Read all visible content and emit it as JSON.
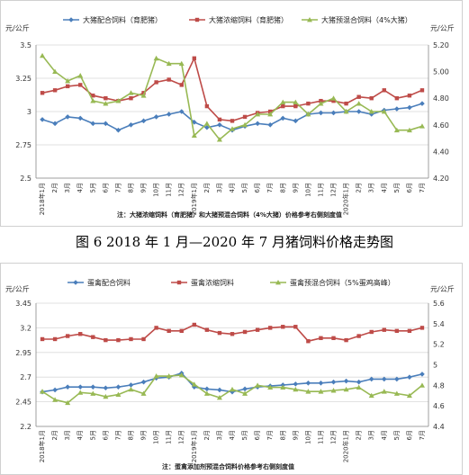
{
  "charts": [
    {
      "legend": [
        {
          "name": "大猪配合饲料（育肥猪）",
          "color": "#4a7ebb"
        },
        {
          "name": "大猪浓缩饲料（育肥猪）",
          "color": "#be4b48"
        },
        {
          "name": "大猪预混合饲料（4%大猪）",
          "color": "#98b954"
        }
      ],
      "y_left_label": "元/公斤",
      "y_right_label": "元/公斤",
      "note": "注：大猪浓缩饲料（育肥猪）和大猪预混合饲料（4%大猪）价格参考右侧刻度值"
    },
    {
      "legend": [
        {
          "name": "蛋禽配合饲料",
          "color": "#4a7ebb"
        },
        {
          "name": "蛋禽浓缩饲料",
          "color": "#be4b48"
        },
        {
          "name": "蛋禽预混合饲料（5%蛋鸡高峰）",
          "color": "#98b954"
        }
      ],
      "y_left_label": "元/公斤",
      "y_right_label": "元/公斤",
      "note": "注：蛋禽添加剂预混合饲料价格参考右侧刻度值"
    }
  ],
  "caption": "图 6   2018 年 1 月—2020 年 7 月猪饲料价格走势图",
  "chart_data": [
    {
      "type": "line",
      "categories": [
        "2018年1月",
        "2月",
        "3月",
        "4月",
        "5月",
        "6月",
        "7月",
        "8月",
        "9月",
        "10月",
        "11月",
        "12月",
        "2019年1月",
        "2月",
        "3月",
        "4月",
        "5月",
        "6月",
        "7月",
        "8月",
        "9月",
        "10月",
        "11月",
        "12月",
        "2020年1月",
        "2月",
        "3月",
        "4月",
        "5月",
        "6月",
        "7月"
      ],
      "y_left": {
        "min": 2.5,
        "max": 3.5,
        "ticks": [
          "2.5",
          "2.75",
          "3",
          "3.25",
          "3.5"
        ]
      },
      "y_right": {
        "min": 4.2,
        "max": 5.2,
        "ticks": [
          "4.20",
          "4.40",
          "4.60",
          "4.80",
          "5.00",
          "5.20"
        ]
      },
      "series": [
        {
          "name": "大猪配合饲料（育肥猪）",
          "axis": "left",
          "color": "#4a7ebb",
          "marker": "diamond",
          "values": [
            2.94,
            2.91,
            2.96,
            2.95,
            2.91,
            2.91,
            2.86,
            2.9,
            2.93,
            2.96,
            2.98,
            3.0,
            2.92,
            2.88,
            2.9,
            2.86,
            2.89,
            2.91,
            2.9,
            2.95,
            2.93,
            2.98,
            2.99,
            2.99,
            3.0,
            3.0,
            2.98,
            3.01,
            3.02,
            3.03,
            3.06
          ]
        },
        {
          "name": "大猪浓缩饲料（育肥猪）",
          "axis": "right",
          "color": "#be4b48",
          "marker": "square",
          "values": [
            4.84,
            4.86,
            4.89,
            4.9,
            4.82,
            4.8,
            4.78,
            4.8,
            4.84,
            4.92,
            4.94,
            4.9,
            5.1,
            4.74,
            4.64,
            4.63,
            4.66,
            4.69,
            4.7,
            4.74,
            4.74,
            4.76,
            4.78,
            4.78,
            4.76,
            4.81,
            4.8,
            4.86,
            4.8,
            4.82,
            4.86
          ]
        },
        {
          "name": "大猪预混合饲料（4%大猪）",
          "axis": "right",
          "color": "#98b954",
          "marker": "triangle",
          "values": [
            5.12,
            5.0,
            4.93,
            4.97,
            4.78,
            4.76,
            4.78,
            4.84,
            4.82,
            5.1,
            5.06,
            5.06,
            4.52,
            4.61,
            4.49,
            4.57,
            4.6,
            4.68,
            4.68,
            4.77,
            4.77,
            4.68,
            4.76,
            4.8,
            4.7,
            4.76,
            4.7,
            4.7,
            4.56,
            4.56,
            4.59
          ]
        }
      ]
    },
    {
      "type": "line",
      "categories": [
        "2018年1月",
        "2月",
        "3月",
        "4月",
        "5月",
        "6月",
        "7月",
        "8月",
        "9月",
        "10月",
        "11月",
        "12月",
        "2019年1月",
        "2月",
        "3月",
        "4月",
        "5月",
        "6月",
        "7月",
        "8月",
        "9月",
        "10月",
        "11月",
        "12月",
        "2020年1月",
        "2月",
        "3月",
        "4月",
        "5月",
        "6月",
        "7月"
      ],
      "y_left": {
        "min": 2.2,
        "max": 3.45,
        "ticks": [
          "2.2",
          "2.45",
          "2.7",
          "2.95",
          "3.2",
          "3.45"
        ]
      },
      "y_right": {
        "min": 4.4,
        "max": 5.6,
        "ticks": [
          "4.4",
          "4.6",
          "4.8",
          "5",
          "5.2",
          "5.4",
          "5.6"
        ]
      },
      "series": [
        {
          "name": "蛋禽配合饲料",
          "axis": "left",
          "color": "#4a7ebb",
          "marker": "diamond",
          "values": [
            2.55,
            2.57,
            2.6,
            2.6,
            2.6,
            2.59,
            2.6,
            2.62,
            2.65,
            2.69,
            2.7,
            2.74,
            2.6,
            2.58,
            2.57,
            2.55,
            2.58,
            2.6,
            2.61,
            2.62,
            2.63,
            2.64,
            2.64,
            2.65,
            2.66,
            2.65,
            2.68,
            2.68,
            2.68,
            2.7,
            2.73
          ]
        },
        {
          "name": "蛋禽浓缩饲料",
          "axis": "right",
          "color": "#be4b48",
          "marker": "square",
          "values": [
            5.25,
            5.25,
            5.28,
            5.3,
            5.27,
            5.24,
            5.24,
            5.25,
            5.25,
            5.36,
            5.33,
            5.33,
            5.39,
            5.34,
            5.31,
            5.3,
            5.32,
            5.34,
            5.36,
            5.37,
            5.37,
            5.23,
            5.26,
            5.26,
            5.24,
            5.28,
            5.32,
            5.34,
            5.33,
            5.33,
            5.36
          ]
        },
        {
          "name": "蛋禽预混合饲料（5%蛋鸡高峰）",
          "axis": "right",
          "color": "#98b954",
          "marker": "triangle",
          "values": [
            4.74,
            4.66,
            4.63,
            4.73,
            4.72,
            4.69,
            4.71,
            4.76,
            4.72,
            4.89,
            4.89,
            4.9,
            4.81,
            4.72,
            4.68,
            4.76,
            4.72,
            4.8,
            4.78,
            4.78,
            4.76,
            4.74,
            4.74,
            4.75,
            4.76,
            4.78,
            4.7,
            4.74,
            4.72,
            4.7,
            4.8
          ]
        }
      ]
    }
  ]
}
